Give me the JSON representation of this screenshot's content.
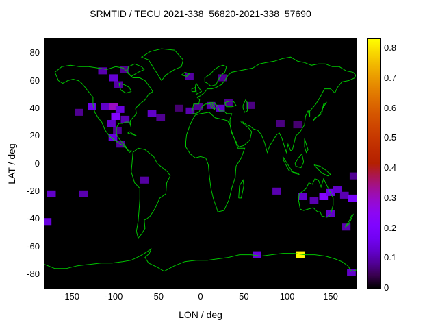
{
  "chart_data": {
    "type": "heatmap",
    "title": "SRMTID / TECU 2021-338_56820-2021-338_57690",
    "xlabel": "LON / deg",
    "ylabel": "LAT / deg",
    "xlim": [
      -180,
      180
    ],
    "ylim": [
      -90,
      90
    ],
    "xticks": [
      -150,
      -100,
      -50,
      0,
      50,
      100,
      150
    ],
    "yticks": [
      -80,
      -60,
      -40,
      -20,
      0,
      20,
      40,
      60,
      80
    ],
    "grid": false,
    "plot_background": "#000000",
    "coastline_color": "#00c400",
    "cell_size_deg": {
      "dlon": 10,
      "dlat": 5
    },
    "colorbar": {
      "min": 0,
      "max": 0.83,
      "ticks": [
        0,
        0.1,
        0.2,
        0.3,
        0.4,
        0.5,
        0.6,
        0.7,
        0.8
      ],
      "palette": "gnuplot-pm3d-black-purple-orange-yellow",
      "position": "right"
    },
    "points": [
      {
        "lon": -113,
        "lat": 67,
        "v": 0.1
      },
      {
        "lon": -88,
        "lat": 68,
        "v": 0.08
      },
      {
        "lon": -100,
        "lat": 62,
        "v": 0.13
      },
      {
        "lon": -95,
        "lat": 57,
        "v": 0.09
      },
      {
        "lon": -140,
        "lat": 37,
        "v": 0.08
      },
      {
        "lon": -125,
        "lat": 41,
        "v": 0.15
      },
      {
        "lon": -110,
        "lat": 41,
        "v": 0.12
      },
      {
        "lon": -100,
        "lat": 41,
        "v": 0.3
      },
      {
        "lon": -93,
        "lat": 39,
        "v": 0.14
      },
      {
        "lon": -98,
        "lat": 34,
        "v": 0.22
      },
      {
        "lon": -87,
        "lat": 32,
        "v": 0.1
      },
      {
        "lon": -103,
        "lat": 29,
        "v": 0.12
      },
      {
        "lon": -96,
        "lat": 24,
        "v": 0.08
      },
      {
        "lon": -101,
        "lat": 19,
        "v": 0.14
      },
      {
        "lon": -92,
        "lat": 14,
        "v": 0.09
      },
      {
        "lon": -56,
        "lat": 36,
        "v": 0.12
      },
      {
        "lon": -46,
        "lat": 33,
        "v": 0.08
      },
      {
        "lon": -25,
        "lat": 40,
        "v": 0.06
      },
      {
        "lon": -12,
        "lat": 38,
        "v": 0.1
      },
      {
        "lon": -2,
        "lat": 41,
        "v": 0.08
      },
      {
        "lon": 12,
        "lat": 42,
        "v": 0.1
      },
      {
        "lon": 23,
        "lat": 40,
        "v": 0.12
      },
      {
        "lon": 32,
        "lat": 44,
        "v": 0.08
      },
      {
        "lon": 58,
        "lat": 42,
        "v": 0.07
      },
      {
        "lon": 25,
        "lat": 62,
        "v": 0.08
      },
      {
        "lon": -13,
        "lat": 63,
        "v": 0.09
      },
      {
        "lon": 92,
        "lat": 29,
        "v": 0.07
      },
      {
        "lon": 112,
        "lat": 28,
        "v": 0.06
      },
      {
        "lon": -65,
        "lat": -12,
        "v": 0.09
      },
      {
        "lon": -172,
        "lat": -22,
        "v": 0.12
      },
      {
        "lon": -135,
        "lat": -22,
        "v": 0.1
      },
      {
        "lon": -177,
        "lat": -42,
        "v": 0.14
      },
      {
        "lon": 88,
        "lat": -20,
        "v": 0.1
      },
      {
        "lon": 118,
        "lat": -24,
        "v": 0.12
      },
      {
        "lon": 131,
        "lat": -27,
        "v": 0.1
      },
      {
        "lon": 142,
        "lat": -24,
        "v": 0.22
      },
      {
        "lon": 150,
        "lat": -21,
        "v": 0.15
      },
      {
        "lon": 158,
        "lat": -19,
        "v": 0.12
      },
      {
        "lon": 166,
        "lat": -23,
        "v": 0.1
      },
      {
        "lon": 175,
        "lat": -25,
        "v": 0.18
      },
      {
        "lon": 150,
        "lat": -36,
        "v": 0.12
      },
      {
        "lon": 168,
        "lat": -46,
        "v": 0.1
      },
      {
        "lon": 177,
        "lat": -9,
        "v": 0.08
      },
      {
        "lon": 65,
        "lat": -66,
        "v": 0.14
      },
      {
        "lon": 115,
        "lat": -66,
        "v": 0.82
      },
      {
        "lon": 174,
        "lat": -79,
        "v": 0.12
      }
    ]
  }
}
